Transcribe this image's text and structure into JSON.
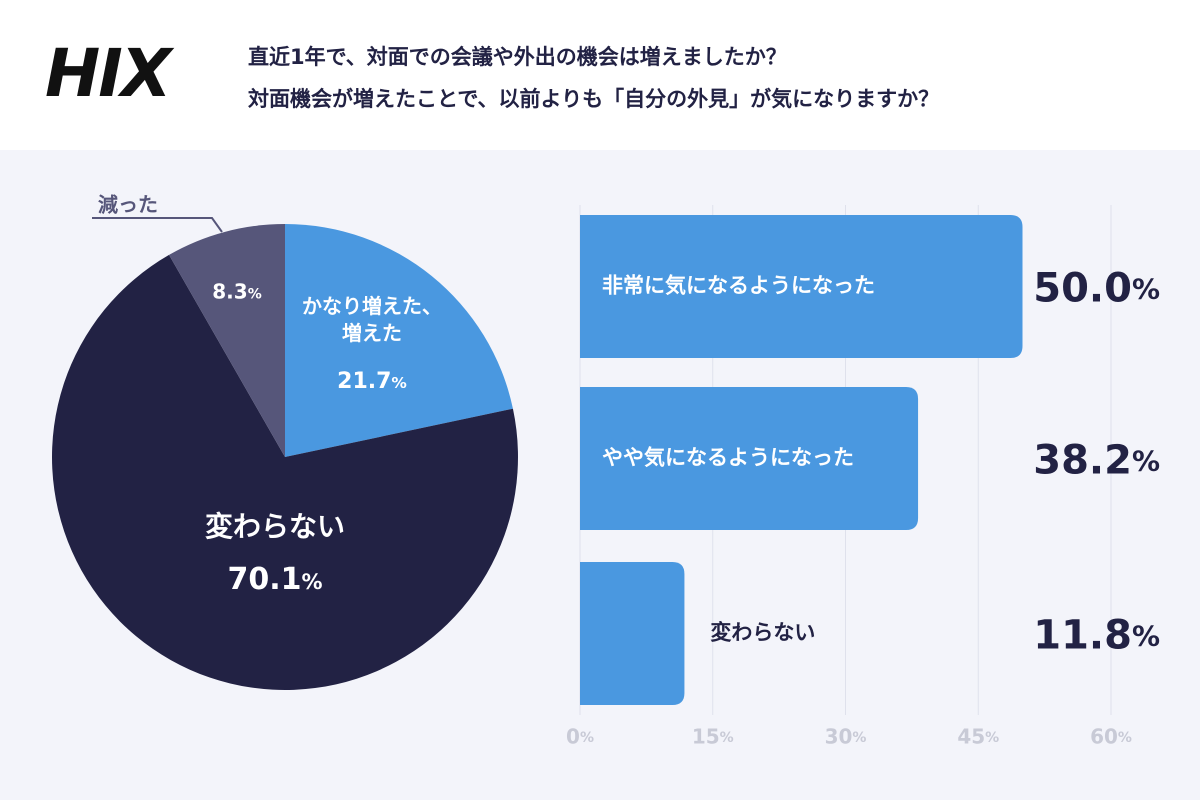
{
  "header": {
    "logo": "HIX",
    "title_lines": [
      "直近1年で、対面での会議や外出の機会は増えましたか？",
      "対面機会が増えたことで、以前よりも「自分の外見」が気になりますか？"
    ]
  },
  "chart_data": [
    {
      "type": "pie",
      "categories": [
        "かなり増えた、\n増えた",
        "変わらない",
        "減った"
      ],
      "values": [
        21.7,
        70.1,
        8.3
      ],
      "value_labels": [
        "21.7%",
        "70.1%",
        "8.3%"
      ],
      "colors": [
        "#4a98e0",
        "#222244",
        "#56567a"
      ]
    },
    {
      "type": "hbar",
      "categories": [
        "非常に気になるようになった",
        "やや気になるようになった",
        "変わらない"
      ],
      "values": [
        50.0,
        38.2,
        11.8
      ],
      "value_labels": [
        "50.0%",
        "38.2%",
        "11.8%"
      ],
      "color": "#4a98e0",
      "xlim": [
        0,
        60
      ],
      "xticks": [
        {
          "value": 0,
          "label": "0%"
        },
        {
          "value": 15,
          "label": "15%"
        },
        {
          "value": 30,
          "label": "30%"
        },
        {
          "value": 45,
          "label": "45%"
        },
        {
          "value": 60,
          "label": "60%"
        }
      ],
      "grid": true
    }
  ]
}
